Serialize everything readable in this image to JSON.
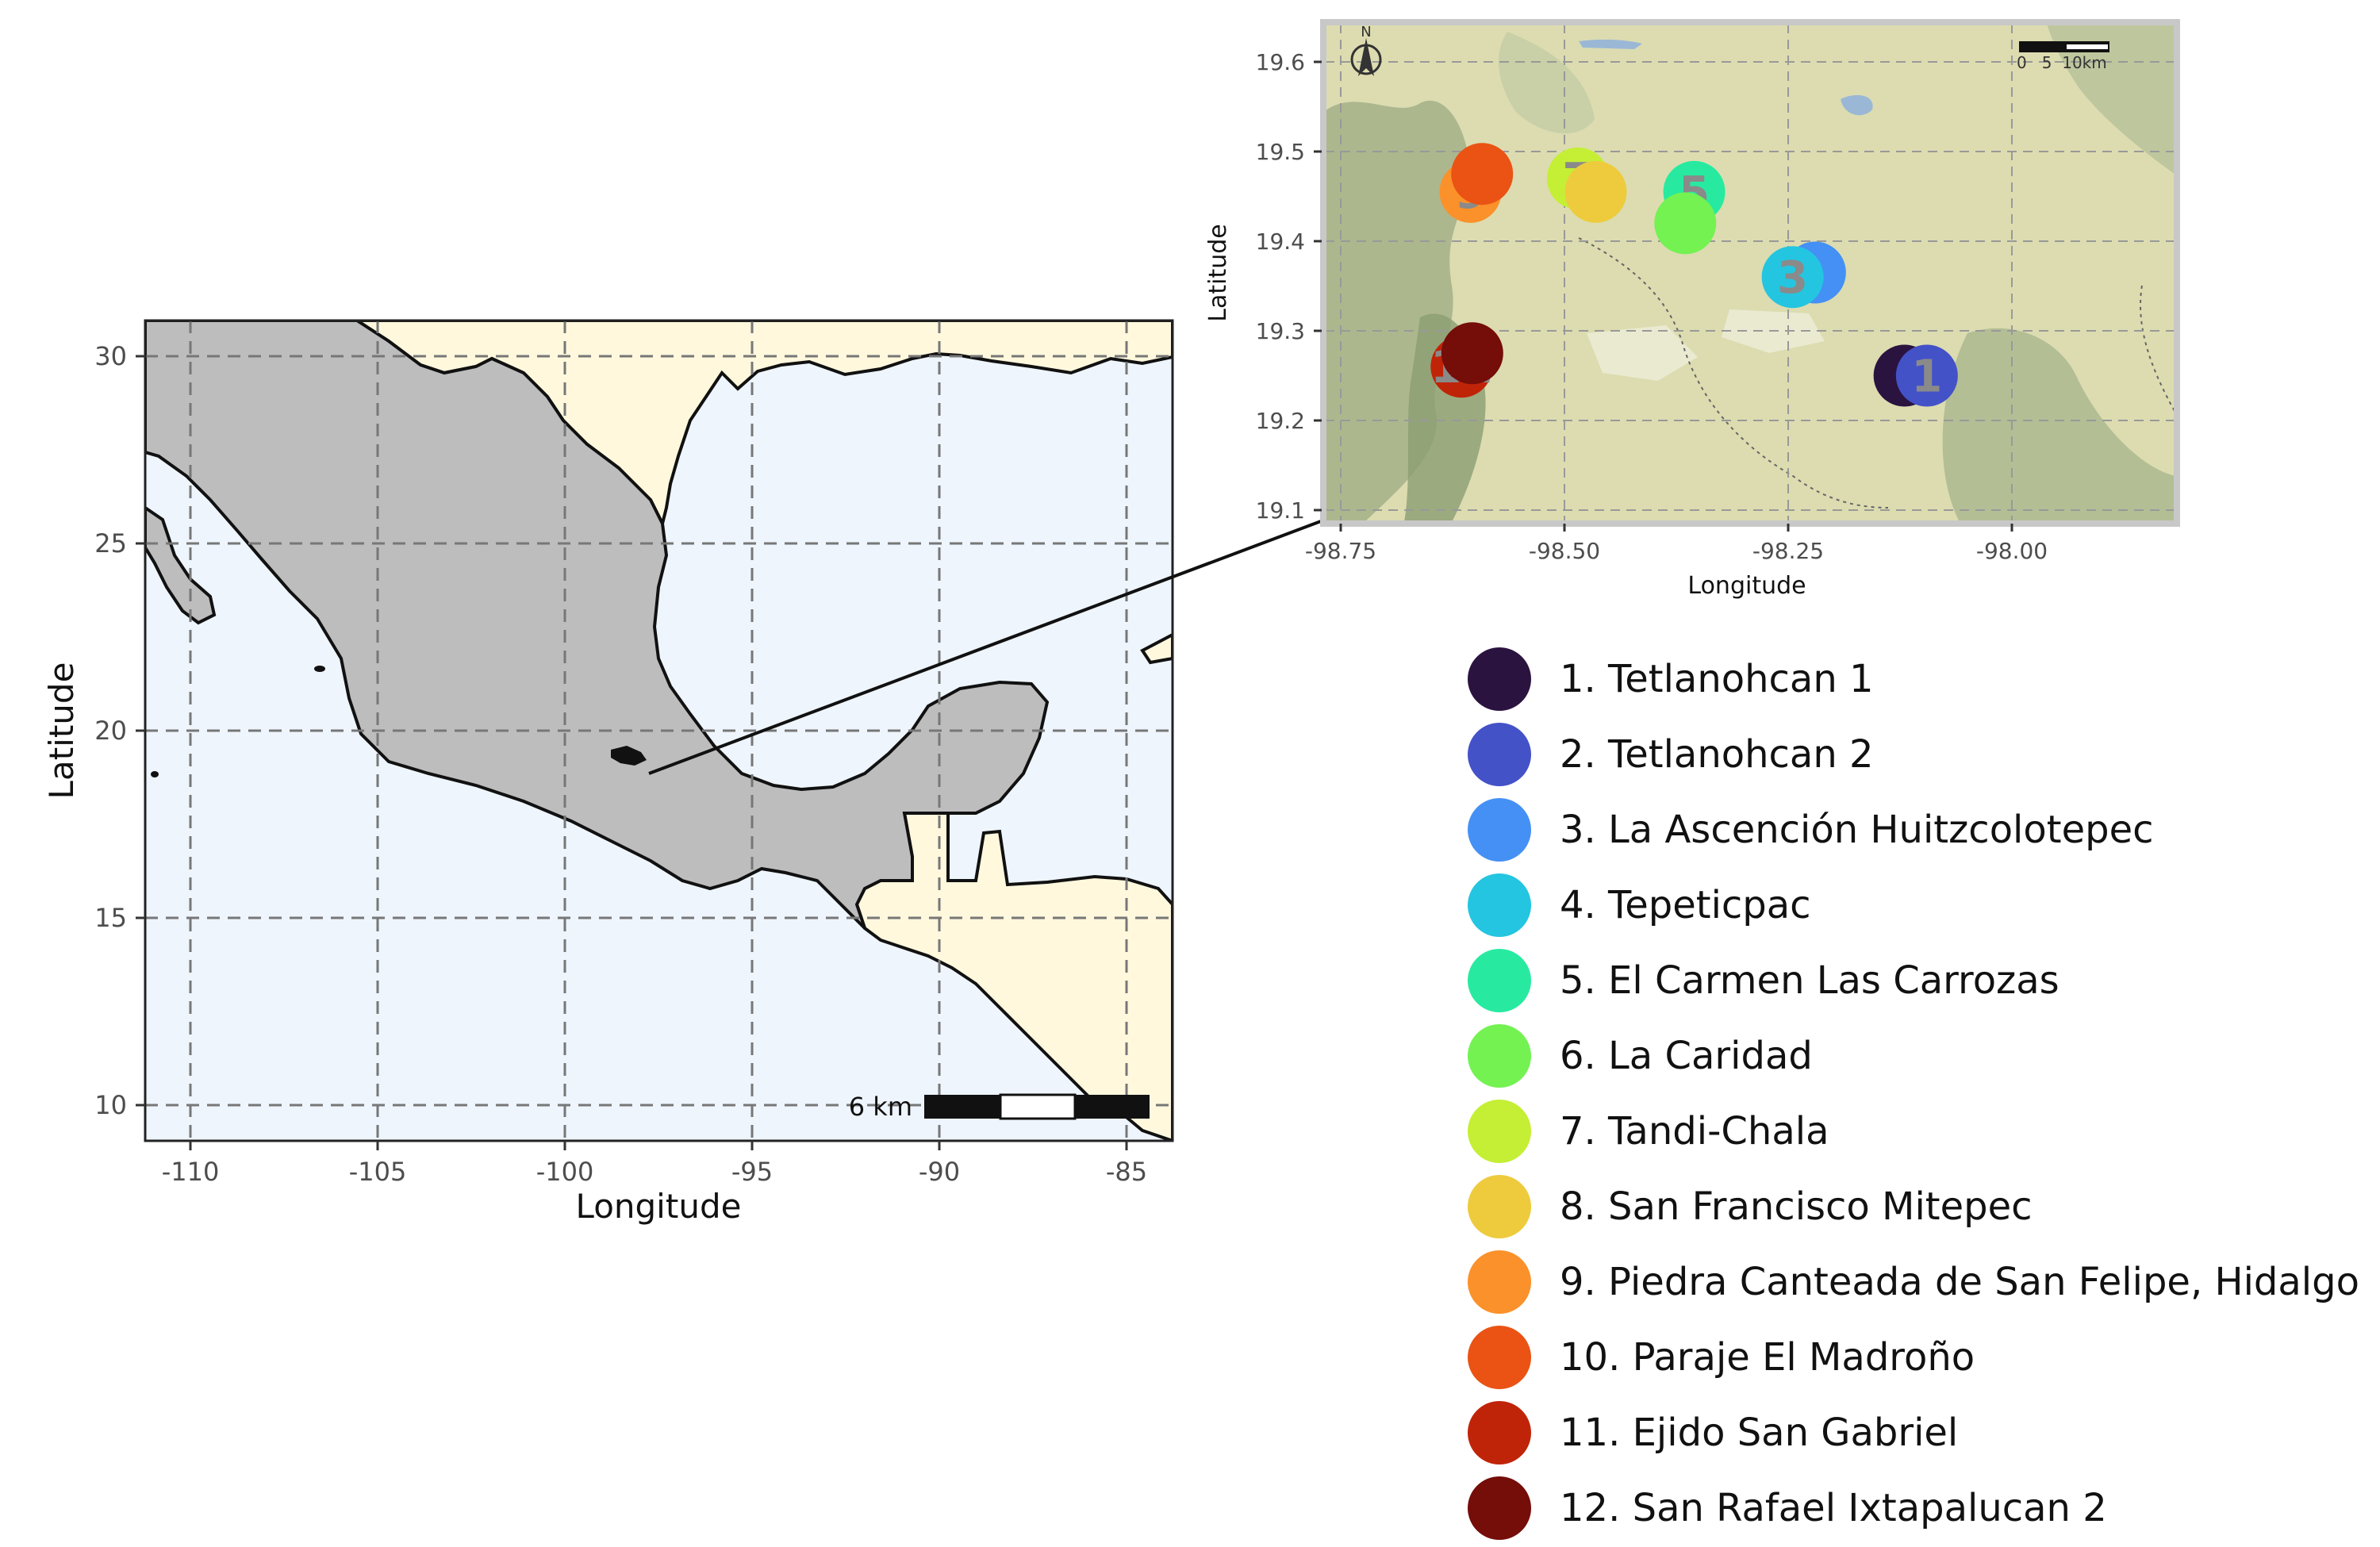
{
  "overview_map": {
    "x_ticks": [
      "-110",
      "-105",
      "-100",
      "-95",
      "-90",
      "-85"
    ],
    "y_ticks": [
      "10",
      "15",
      "20",
      "25",
      "30"
    ],
    "x_title": "Longitude",
    "y_title": "Latitude",
    "scale_bar_label": "6 km",
    "colors": {
      "ocean": "#eef5fd",
      "land": "#fff8dd",
      "mexico": "#bdbdbd",
      "grid": "#777777"
    }
  },
  "inset_map": {
    "x_ticks": [
      "-98.75",
      "-98.50",
      "-98.25",
      "-98.00"
    ],
    "y_ticks": [
      "19.1",
      "19.2",
      "19.3",
      "19.4",
      "19.5",
      "19.6"
    ],
    "x_title": "Longitude",
    "y_title": "Latitude",
    "north_label": "N",
    "scale_bar_label": "0   5  10km",
    "colors": {
      "terrain": "#dcdcb0",
      "border": "#c8c8c8"
    },
    "markers": [
      {
        "site": 1,
        "lon": -98.12,
        "lat": 19.25,
        "color": "#2b1340",
        "label": ""
      },
      {
        "site": 2,
        "lon": -98.095,
        "lat": 19.25,
        "color": "#4452c8",
        "label": "1"
      },
      {
        "site": 3,
        "lon": -98.22,
        "lat": 19.365,
        "color": "#4590f5",
        "label": ""
      },
      {
        "site": 4,
        "lon": -98.245,
        "lat": 19.36,
        "color": "#24c5e0",
        "label": "3"
      },
      {
        "site": 5,
        "lon": -98.355,
        "lat": 19.455,
        "color": "#27eaa0",
        "label": "5"
      },
      {
        "site": 6,
        "lon": -98.365,
        "lat": 19.42,
        "color": "#73f252",
        "label": ""
      },
      {
        "site": 7,
        "lon": -98.485,
        "lat": 19.47,
        "color": "#c4ef34",
        "label": "7"
      },
      {
        "site": 8,
        "lon": -98.465,
        "lat": 19.455,
        "color": "#eecb3d",
        "label": ""
      },
      {
        "site": 9,
        "lon": -98.605,
        "lat": 19.455,
        "color": "#fb912a",
        "label": "9"
      },
      {
        "site": 10,
        "lon": -98.592,
        "lat": 19.475,
        "color": "#ea5314",
        "label": ""
      },
      {
        "site": 11,
        "lon": -98.615,
        "lat": 19.26,
        "color": "#c02408",
        "label": "11"
      },
      {
        "site": 12,
        "lon": -98.603,
        "lat": 19.275,
        "color": "#750d09",
        "label": ""
      }
    ]
  },
  "legend": {
    "items": [
      {
        "label": "1. Tetlanohcan 1",
        "color": "#2b1340"
      },
      {
        "label": "2. Tetlanohcan 2",
        "color": "#4452c8"
      },
      {
        "label": "3. La Ascención Huitzcolotepec",
        "color": "#4590f5"
      },
      {
        "label": "4. Tepeticpac",
        "color": "#24c5e0"
      },
      {
        "label": "5. El Carmen Las Carrozas",
        "color": "#27eaa0"
      },
      {
        "label": "6. La Caridad",
        "color": "#73f252"
      },
      {
        "label": "7. Tandi-Chala",
        "color": "#c4ef34"
      },
      {
        "label": "8. San Francisco Mitepec",
        "color": "#eecb3d"
      },
      {
        "label": "9. Piedra Canteada de San Felipe, Hidalgo",
        "color": "#fb912a"
      },
      {
        "label": "10. Paraje El Madroño",
        "color": "#ea5314"
      },
      {
        "label": "11. Ejido San Gabriel",
        "color": "#c02408"
      },
      {
        "label": "12. San Rafael Ixtapalucan 2",
        "color": "#750d09"
      }
    ]
  }
}
